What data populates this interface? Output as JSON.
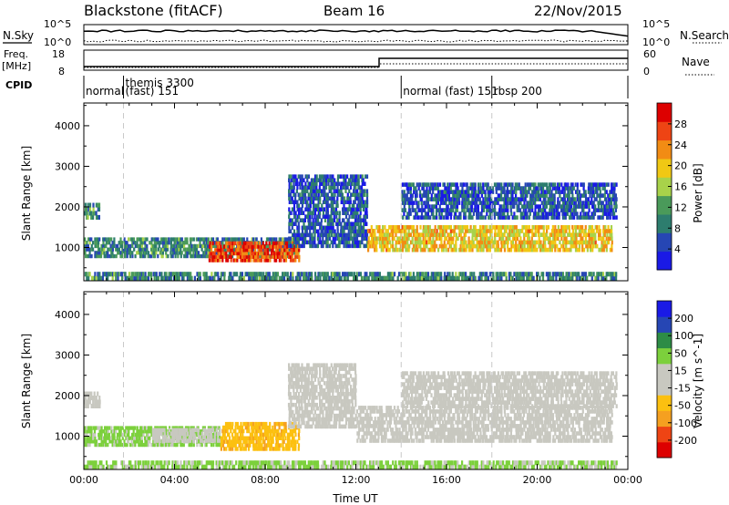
{
  "header": {
    "station": "Blackstone (fitACF)",
    "beam": "Beam 16",
    "date": "22/Nov/2015"
  },
  "strip_labels": {
    "nsky": "N.Sky",
    "nsearch": "N.Search",
    "freq_line1": "Freq.",
    "freq_line2": "[MHz]",
    "nave": "Nave",
    "cpid": "CPID",
    "noise_ticks_left": [
      "10^5",
      "10^0"
    ],
    "noise_ticks_right": [
      "10^5",
      "10^0"
    ],
    "freq_ticks": [
      "18",
      "8"
    ],
    "nave_ticks": [
      "60",
      "0"
    ]
  },
  "cpid_segments": [
    {
      "label": "normal",
      "start_hour": 0.0
    },
    {
      "label": "themis 3300",
      "sublabel": "(fast) 151",
      "start_hour": 1.75
    },
    {
      "label": "normal (fast) 151",
      "start_hour": 14.0
    },
    {
      "label": "rbsp 200",
      "start_hour": 18.0
    }
  ],
  "colors": {
    "power_scale": [
      "#1a1ae6",
      "#2646b4",
      "#2d7d6e",
      "#4a9a5a",
      "#a8d24a",
      "#f0c814",
      "#f28c14",
      "#ee4414",
      "#dd0000"
    ],
    "velocity_scale": [
      "#dd0000",
      "#ee4414",
      "#f5a020",
      "#fcc010",
      "#c8c8c0",
      "#c8c8c0",
      "#7cd03c",
      "#2d8c46",
      "#2646b4",
      "#1a1ae6"
    ],
    "mode_divider": "#c8c8c8"
  },
  "chart_data": [
    {
      "type": "heatmap",
      "title": "",
      "parameter": "Power",
      "colorbar_label": "Power [dB]",
      "colorbar_ticks": [
        "28",
        "24",
        "20",
        "16",
        "12",
        "8",
        "4"
      ],
      "colorbar_range": [
        0,
        32
      ],
      "xlabel": "",
      "ylabel": "Slant Range [km]",
      "y_ticks": [
        "4000",
        "3000",
        "2000",
        "1000"
      ],
      "ylim": [
        180,
        4560
      ],
      "xlim_hours": [
        0,
        24
      ],
      "approx_echo_bands": [
        {
          "t_start": 0.0,
          "t_end": 0.7,
          "range_lo": 1700,
          "range_hi": 2100,
          "power": 10
        },
        {
          "t_start": 0.0,
          "t_end": 9.5,
          "range_lo": 750,
          "range_hi": 1250,
          "power": 10
        },
        {
          "t_start": 5.5,
          "t_end": 9.5,
          "range_lo": 650,
          "range_hi": 1150,
          "power": 27
        },
        {
          "t_start": 9.0,
          "t_end": 12.5,
          "range_lo": 1000,
          "range_hi": 2800,
          "power": 6
        },
        {
          "t_start": 12.5,
          "t_end": 23.3,
          "range_lo": 900,
          "range_hi": 1550,
          "power": 20
        },
        {
          "t_start": 14.0,
          "t_end": 23.5,
          "range_lo": 1700,
          "range_hi": 2600,
          "power": 6
        },
        {
          "t_start": 0.0,
          "t_end": 23.5,
          "range_lo": 200,
          "range_hi": 400,
          "power": 10
        }
      ]
    },
    {
      "type": "heatmap",
      "title": "",
      "parameter": "Velocity",
      "colorbar_label": "Velocity [m s^-1]",
      "colorbar_ticks": [
        "200",
        "100",
        "50",
        "15",
        "-15",
        "-50",
        "-100",
        "-200"
      ],
      "colorbar_range": [
        -250,
        250
      ],
      "xlabel": "Time UT",
      "x_ticks": [
        "00:00",
        "04:00",
        "08:00",
        "12:00",
        "16:00",
        "20:00",
        "00:00"
      ],
      "ylabel": "Slant Range [km]",
      "y_ticks": [
        "4000",
        "3000",
        "2000",
        "1000"
      ],
      "ylim": [
        180,
        4560
      ],
      "xlim_hours": [
        0,
        24
      ],
      "approx_echo_bands": [
        {
          "t_start": 0.0,
          "t_end": 0.7,
          "range_lo": 1700,
          "range_hi": 2100,
          "velocity": 0
        },
        {
          "t_start": 0.0,
          "t_end": 6.0,
          "range_lo": 750,
          "range_hi": 1250,
          "velocity": 25
        },
        {
          "t_start": 3.0,
          "t_end": 6.0,
          "range_lo": 850,
          "range_hi": 1200,
          "velocity": 0
        },
        {
          "t_start": 6.0,
          "t_end": 9.5,
          "range_lo": 650,
          "range_hi": 1350,
          "velocity": -40
        },
        {
          "t_start": 9.0,
          "t_end": 12.0,
          "range_lo": 1200,
          "range_hi": 2800,
          "velocity": 0
        },
        {
          "t_start": 12.0,
          "t_end": 23.3,
          "range_lo": 850,
          "range_hi": 1750,
          "velocity": 0
        },
        {
          "t_start": 14.0,
          "t_end": 23.5,
          "range_lo": 1700,
          "range_hi": 2600,
          "velocity": 0
        },
        {
          "t_start": 0.0,
          "t_end": 23.5,
          "range_lo": 200,
          "range_hi": 400,
          "velocity": 20
        }
      ]
    }
  ]
}
